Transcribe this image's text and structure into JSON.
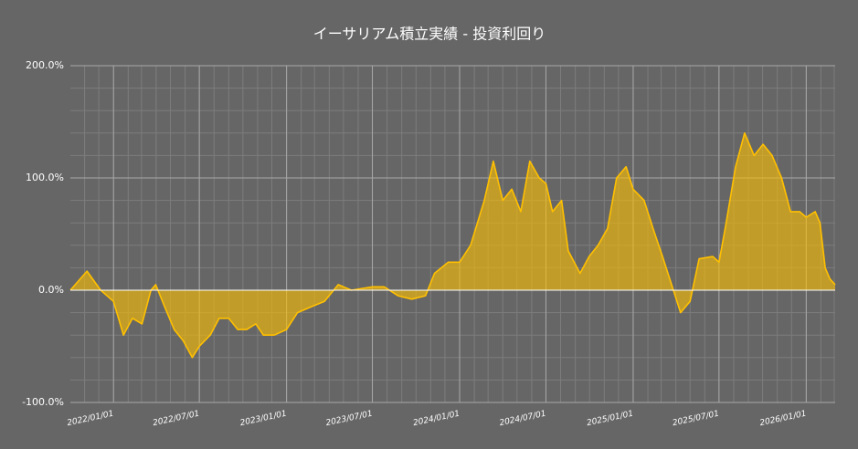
{
  "chart_data": {
    "type": "area",
    "title": "イーサリアム積立実績 - 投資利回り",
    "x": [
      "2021-10-02",
      "2021-11-06",
      "2021-12-05",
      "2022-01-01",
      "2022-01-22",
      "2022-02-10",
      "2022-03-02",
      "2022-03-21",
      "2022-03-31",
      "2022-04-19",
      "2022-05-09",
      "2022-05-28",
      "2022-06-16",
      "2022-07-01",
      "2022-07-24",
      "2022-08-12",
      "2022-09-01",
      "2022-09-20",
      "2022-10-09",
      "2022-10-28",
      "2022-11-13",
      "2022-12-06",
      "2023-01-01",
      "2023-01-24",
      "2023-02-21",
      "2023-03-22",
      "2023-04-20",
      "2023-05-18",
      "2023-06-16",
      "2023-07-01",
      "2023-07-26",
      "2023-08-24",
      "2023-09-22",
      "2023-10-21",
      "2023-11-09",
      "2023-12-08",
      "2024-01-01",
      "2024-01-24",
      "2024-02-22",
      "2024-03-12",
      "2024-04-01",
      "2024-04-20",
      "2024-05-09",
      "2024-05-28",
      "2024-06-17",
      "2024-07-01",
      "2024-07-15",
      "2024-08-03",
      "2024-08-17",
      "2024-09-11",
      "2024-09-30",
      "2024-10-19",
      "2024-11-08",
      "2024-11-27",
      "2024-12-17",
      "2025-01-01",
      "2025-01-24",
      "2025-02-12",
      "2025-03-04",
      "2025-03-23",
      "2025-04-11",
      "2025-05-01",
      "2025-05-20",
      "2025-06-18",
      "2025-07-01",
      "2025-07-16",
      "2025-08-05",
      "2025-08-24",
      "2025-09-13",
      "2025-10-02",
      "2025-10-21",
      "2025-11-10",
      "2025-11-29",
      "2025-12-18",
      "2026-01-01",
      "2026-01-20",
      "2026-01-30",
      "2026-02-10",
      "2026-02-20",
      "2026-03-03"
    ],
    "series": [
      {
        "color": "#ffc000",
        "values": [
          0,
          17,
          0,
          -10,
          -40,
          -25,
          -30,
          0,
          5,
          -15,
          -35,
          -45,
          -60,
          -50,
          -40,
          -25,
          -25,
          -35,
          -35,
          -30,
          -40,
          -40,
          -35,
          -20,
          -15,
          -10,
          5,
          0,
          2,
          3,
          3,
          -5,
          -8,
          -5,
          15,
          25,
          25,
          40,
          80,
          115,
          80,
          90,
          70,
          115,
          100,
          95,
          70,
          80,
          35,
          15,
          30,
          40,
          55,
          100,
          110,
          90,
          80,
          55,
          30,
          5,
          -20,
          -10,
          28,
          30,
          25,
          60,
          110,
          140,
          120,
          130,
          120,
          100,
          70,
          70,
          65,
          70,
          60,
          20,
          10,
          5
        ]
      }
    ],
    "xlim": [
      "2021-10-02",
      "2026-03-03"
    ],
    "xticks": [
      {
        "value": "2022-01-01",
        "label": "2022/01/01"
      },
      {
        "value": "2022-07-01",
        "label": "2022/07/01"
      },
      {
        "value": "2023-01-01",
        "label": "2023/01/01"
      },
      {
        "value": "2023-07-01",
        "label": "2023/07/01"
      },
      {
        "value": "2024-01-01",
        "label": "2024/01/01"
      },
      {
        "value": "2024-07-01",
        "label": "2024/07/01"
      },
      {
        "value": "2025-01-01",
        "label": "2025/01/01"
      },
      {
        "value": "2025-07-01",
        "label": "2025/07/01"
      },
      {
        "value": "2026-01-01",
        "label": "2026/01/01"
      }
    ],
    "ylim": [
      -100,
      200
    ],
    "yticks": [
      {
        "value": -100,
        "label": "-100.0%"
      },
      {
        "value": 0,
        "label": "0.0%"
      },
      {
        "value": 100,
        "label": "100.0%"
      },
      {
        "value": 200,
        "label": "200.0%"
      }
    ],
    "minor_yticks": [
      -80,
      -60,
      -40,
      -20,
      20,
      40,
      60,
      80,
      120,
      140,
      160,
      180
    ],
    "grid": true
  }
}
